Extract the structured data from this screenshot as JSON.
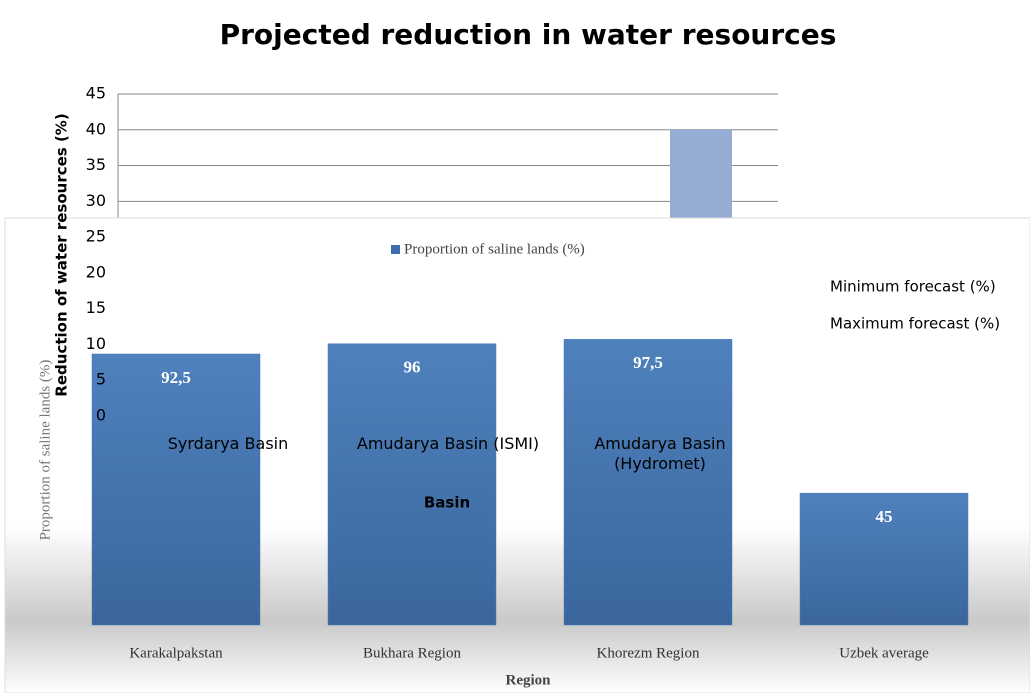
{
  "chart_data": [
    {
      "type": "bar",
      "title": "Projected reduction in water resources",
      "y_label": "Reduction of water resources (%)",
      "x_label": "Basin",
      "categories": [
        "Syrdarya Basin",
        "Amudarya Basin (ISMI)",
        "Amudarya Basin (Hydromet)"
      ],
      "series": [
        {
          "name": "Minimum forecast (%)",
          "color": "#4f81bd",
          "values": [
            null,
            null,
            null
          ]
        },
        {
          "name": "Maximum forecast (%)",
          "color": "#95acd4",
          "values": [
            null,
            null,
            40
          ]
        }
      ],
      "ylim": [
        0,
        45
      ],
      "yticks": [
        0,
        5,
        10,
        15,
        20,
        25,
        30,
        35,
        40,
        45
      ],
      "grid": true
    },
    {
      "type": "bar",
      "y_label": "Proportion of saline lands (%)",
      "x_label": "Region",
      "categories": [
        "Karakalpakstan",
        "Bukhara Region",
        "Khorezm Region",
        "Uzbek average"
      ],
      "series": [
        {
          "name": "Proportion of saline lands (%)",
          "color": "#4a7bb8",
          "values": [
            92.5,
            96,
            97.5,
            45
          ],
          "value_labels": [
            "92,5",
            "96",
            "97,5",
            "45"
          ]
        }
      ],
      "ylim": [
        0,
        100
      ]
    }
  ]
}
